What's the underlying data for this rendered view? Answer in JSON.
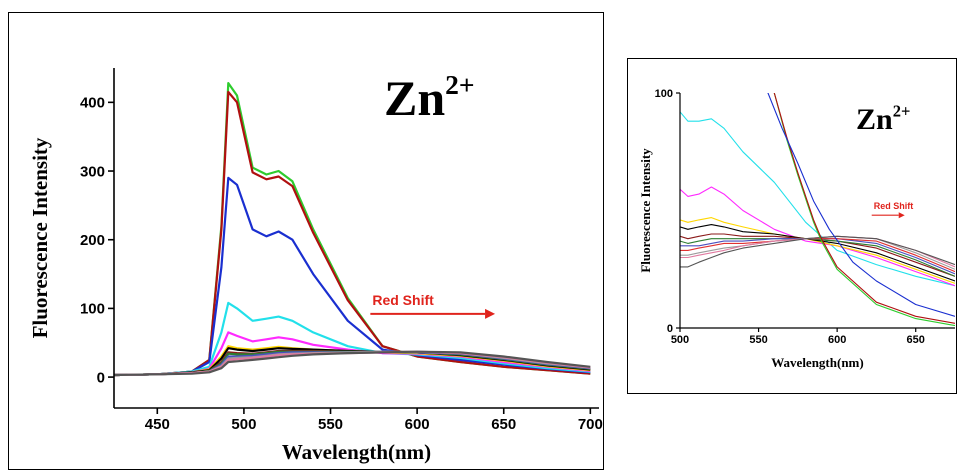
{
  "chart_data": [
    {
      "type": "line",
      "ion_label": "Zn",
      "ion_charge": "2+",
      "xlabel": "Wavelength(nm)",
      "ylabel": "Fluorescence Intensity",
      "xlim": [
        425,
        705
      ],
      "ylim": [
        -45,
        450
      ],
      "xticks": [
        450,
        500,
        550,
        600,
        650,
        700
      ],
      "yticks": [
        0,
        100,
        200,
        300,
        400
      ],
      "annotation": {
        "text": "Red Shift",
        "arrow_from": [
          573,
          92
        ],
        "arrow_to": [
          645,
          92
        ]
      },
      "series": [
        {
          "color": "#2ecc2e",
          "x": [
            425,
            450,
            470,
            480,
            487,
            491,
            496,
            505,
            513,
            520,
            528,
            540,
            560,
            580,
            600,
            625,
            650,
            675,
            700
          ],
          "y": [
            3,
            4,
            8,
            25,
            220,
            428,
            410,
            305,
            295,
            300,
            285,
            215,
            115,
            45,
            30,
            22,
            15,
            10,
            5
          ]
        },
        {
          "color": "#b01010",
          "x": [
            425,
            450,
            470,
            480,
            487,
            491,
            496,
            505,
            513,
            520,
            528,
            540,
            560,
            580,
            600,
            625,
            650,
            675,
            700
          ],
          "y": [
            3,
            4,
            8,
            25,
            215,
            415,
            400,
            298,
            288,
            292,
            278,
            210,
            112,
            45,
            30,
            22,
            15,
            10,
            5
          ]
        },
        {
          "color": "#1a2fd0",
          "x": [
            425,
            450,
            470,
            480,
            487,
            491,
            496,
            505,
            513,
            520,
            528,
            540,
            560,
            580,
            600,
            625,
            650,
            675,
            700
          ],
          "y": [
            3,
            4,
            8,
            22,
            160,
            290,
            280,
            215,
            205,
            212,
            200,
            150,
            82,
            40,
            32,
            25,
            18,
            12,
            7
          ]
        },
        {
          "color": "#22e0ea",
          "x": [
            425,
            450,
            470,
            480,
            487,
            491,
            496,
            505,
            513,
            520,
            528,
            540,
            560,
            580,
            600,
            625,
            650,
            675,
            700
          ],
          "y": [
            3,
            4,
            8,
            15,
            65,
            108,
            100,
            82,
            85,
            88,
            82,
            65,
            45,
            35,
            33,
            28,
            20,
            13,
            8
          ]
        },
        {
          "color": "#ff2aff",
          "x": [
            425,
            450,
            470,
            480,
            487,
            491,
            496,
            505,
            513,
            520,
            528,
            540,
            560,
            580,
            600,
            625,
            650,
            675,
            700
          ],
          "y": [
            3,
            4,
            7,
            12,
            42,
            65,
            60,
            52,
            55,
            58,
            55,
            47,
            40,
            35,
            34,
            30,
            22,
            15,
            9
          ]
        },
        {
          "color": "#ffd700",
          "x": [
            425,
            450,
            470,
            480,
            487,
            491,
            496,
            505,
            513,
            520,
            528,
            540,
            560,
            580,
            600,
            625,
            650,
            675,
            700
          ],
          "y": [
            3,
            4,
            7,
            11,
            30,
            45,
            42,
            40,
            42,
            44,
            42,
            40,
            38,
            36,
            35,
            31,
            24,
            16,
            10
          ]
        },
        {
          "color": "#000000",
          "x": [
            425,
            450,
            470,
            480,
            487,
            491,
            496,
            505,
            513,
            520,
            528,
            540,
            560,
            580,
            600,
            625,
            650,
            675,
            700
          ],
          "y": [
            3,
            4,
            7,
            10,
            27,
            42,
            40,
            38,
            40,
            42,
            41,
            40,
            38,
            37,
            36,
            32,
            25,
            17,
            11
          ]
        },
        {
          "color": "#8b1a1a",
          "x": [
            425,
            450,
            470,
            480,
            487,
            491,
            496,
            505,
            513,
            520,
            528,
            540,
            560,
            580,
            600,
            625,
            650,
            675,
            700
          ],
          "y": [
            3,
            4,
            6,
            9,
            22,
            36,
            35,
            34,
            36,
            38,
            38,
            38,
            37,
            37,
            36,
            33,
            26,
            18,
            12
          ]
        },
        {
          "color": "#2e7d32",
          "x": [
            425,
            450,
            470,
            480,
            487,
            491,
            496,
            505,
            513,
            520,
            528,
            540,
            560,
            580,
            600,
            625,
            650,
            675,
            700
          ],
          "y": [
            3,
            4,
            6,
            9,
            20,
            34,
            33,
            33,
            35,
            37,
            37,
            37,
            37,
            37,
            36,
            33,
            26,
            18,
            12
          ]
        },
        {
          "color": "#4a4fbf",
          "x": [
            425,
            450,
            470,
            480,
            487,
            491,
            496,
            505,
            513,
            520,
            528,
            540,
            560,
            580,
            600,
            625,
            650,
            675,
            700
          ],
          "y": [
            3,
            4,
            6,
            8,
            18,
            30,
            30,
            31,
            33,
            35,
            36,
            36,
            36,
            37,
            36,
            34,
            27,
            19,
            13
          ]
        },
        {
          "color": "#9c9c9c",
          "x": [
            425,
            450,
            470,
            480,
            487,
            491,
            496,
            505,
            513,
            520,
            528,
            540,
            560,
            580,
            600,
            625,
            650,
            675,
            700
          ],
          "y": [
            3,
            4,
            6,
            8,
            16,
            27,
            28,
            29,
            31,
            33,
            34,
            35,
            36,
            37,
            37,
            35,
            28,
            20,
            14
          ]
        },
        {
          "color": "#e07aa0",
          "x": [
            425,
            450,
            470,
            480,
            487,
            491,
            496,
            505,
            513,
            520,
            528,
            540,
            560,
            580,
            600,
            625,
            650,
            675,
            700
          ],
          "y": [
            3,
            4,
            6,
            8,
            15,
            25,
            26,
            28,
            30,
            32,
            33,
            34,
            35,
            36,
            37,
            35,
            29,
            21,
            14
          ]
        },
        {
          "color": "#555555",
          "x": [
            425,
            450,
            470,
            480,
            487,
            491,
            496,
            505,
            513,
            520,
            528,
            540,
            560,
            580,
            600,
            625,
            650,
            675,
            700
          ],
          "y": [
            3,
            4,
            5,
            7,
            13,
            22,
            23,
            25,
            27,
            29,
            31,
            33,
            35,
            36,
            37,
            36,
            30,
            22,
            15
          ]
        }
      ]
    },
    {
      "type": "line",
      "ion_label": "Zn",
      "ion_charge": "2+",
      "xlabel": "Wavelength(nm)",
      "ylabel": "Fluorescence Intensity",
      "xlim": [
        500,
        675
      ],
      "ylim": [
        0,
        100
      ],
      "xticks": [
        500,
        550,
        600,
        650
      ],
      "yticks": [
        0,
        100
      ],
      "annotation": {
        "text": "Red Shift",
        "arrow_from": [
          622,
          48
        ],
        "arrow_to": [
          643,
          48
        ]
      },
      "series": [
        {
          "color": "#22e0ea",
          "x": [
            500,
            505,
            512,
            520,
            528,
            540,
            560,
            580,
            600,
            625,
            650,
            675
          ],
          "y": [
            92,
            88,
            88,
            89,
            85,
            75,
            62,
            45,
            33,
            27,
            22,
            18
          ]
        },
        {
          "color": "#ff2aff",
          "x": [
            500,
            505,
            512,
            520,
            528,
            540,
            560,
            580,
            600,
            625,
            650,
            675
          ],
          "y": [
            59,
            56,
            57,
            60,
            57,
            50,
            42,
            37,
            35,
            30,
            24,
            18
          ]
        },
        {
          "color": "#ffd700",
          "x": [
            500,
            505,
            512,
            520,
            528,
            540,
            560,
            580,
            600,
            625,
            650,
            675
          ],
          "y": [
            46,
            45,
            46,
            47,
            45,
            43,
            40,
            38,
            35,
            31,
            25,
            19
          ]
        },
        {
          "color": "#000000",
          "x": [
            500,
            505,
            512,
            520,
            528,
            540,
            560,
            580,
            600,
            625,
            650,
            675
          ],
          "y": [
            43,
            42,
            43,
            44,
            43,
            41,
            40,
            38,
            36,
            32,
            26,
            20
          ]
        },
        {
          "color": "#8b1a1a",
          "x": [
            500,
            505,
            512,
            520,
            528,
            540,
            560,
            580,
            600,
            625,
            650,
            675
          ],
          "y": [
            39,
            38,
            39,
            40,
            40,
            39,
            39,
            38,
            37,
            34,
            28,
            22
          ]
        },
        {
          "color": "#2e7d32",
          "x": [
            500,
            505,
            512,
            520,
            528,
            540,
            560,
            580,
            600,
            625,
            650,
            675
          ],
          "y": [
            37,
            36,
            37,
            38,
            38,
            38,
            38,
            38,
            37,
            35,
            29,
            22
          ]
        },
        {
          "color": "#4a4fbf",
          "x": [
            500,
            505,
            512,
            520,
            528,
            540,
            560,
            580,
            600,
            625,
            650,
            675
          ],
          "y": [
            35,
            35,
            35,
            36,
            37,
            37,
            38,
            38,
            38,
            36,
            30,
            23
          ]
        },
        {
          "color": "#e03030",
          "x": [
            500,
            505,
            512,
            520,
            528,
            540,
            560,
            580,
            600,
            625,
            650,
            675
          ],
          "y": [
            33,
            33,
            34,
            35,
            36,
            36,
            37,
            38,
            38,
            37,
            31,
            24
          ]
        },
        {
          "color": "#9c9c9c",
          "x": [
            500,
            505,
            512,
            520,
            528,
            540,
            560,
            580,
            600,
            625,
            650,
            675
          ],
          "y": [
            31,
            31,
            32,
            33,
            34,
            35,
            37,
            38,
            39,
            38,
            32,
            25
          ]
        },
        {
          "color": "#e07aa0",
          "x": [
            500,
            505,
            512,
            520,
            528,
            540,
            560,
            580,
            600,
            625,
            650,
            675
          ],
          "y": [
            30,
            30,
            31,
            32,
            33,
            35,
            37,
            38,
            39,
            38,
            33,
            26
          ]
        },
        {
          "color": "#555555",
          "x": [
            500,
            505,
            512,
            520,
            528,
            540,
            560,
            580,
            600,
            625,
            650,
            675
          ],
          "y": [
            26,
            26,
            28,
            30,
            32,
            34,
            36,
            38,
            39,
            38,
            33,
            27
          ]
        },
        {
          "color": "#2ecc2e",
          "x": [
            500,
            560,
            568,
            575,
            580,
            585,
            590,
            600,
            625,
            650,
            675
          ],
          "y": [
            150,
            100,
            80,
            65,
            55,
            45,
            37,
            25,
            10,
            4,
            1
          ]
        },
        {
          "color": "#b01010",
          "x": [
            500,
            560,
            568,
            575,
            580,
            585,
            590,
            600,
            625,
            650,
            675
          ],
          "y": [
            148,
            100,
            81,
            66,
            56,
            46,
            38,
            26,
            11,
            5,
            2
          ]
        },
        {
          "color": "#1a2fd0",
          "x": [
            500,
            556,
            565,
            575,
            585,
            595,
            610,
            625,
            650,
            675
          ],
          "y": [
            140,
            100,
            85,
            70,
            54,
            42,
            28,
            20,
            10,
            5
          ]
        }
      ]
    }
  ]
}
